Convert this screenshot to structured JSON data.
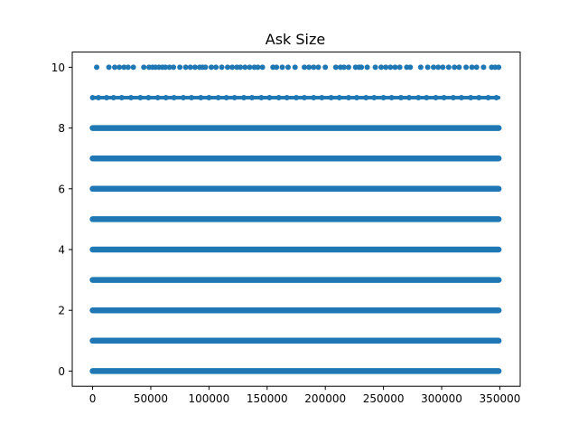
{
  "chart_data": {
    "type": "scatter",
    "title": "Ask Size",
    "xlabel": "",
    "ylabel": "",
    "xlim": [
      -17500,
      367500
    ],
    "ylim": [
      -0.5,
      10.5
    ],
    "x_ticks": [
      0,
      50000,
      100000,
      150000,
      200000,
      250000,
      300000,
      350000
    ],
    "x_tick_labels": [
      "0",
      "50000",
      "100000",
      "150000",
      "200000",
      "250000",
      "300000",
      "350000"
    ],
    "y_ticks": [
      0,
      2,
      4,
      6,
      8,
      10
    ],
    "y_tick_labels": [
      "0",
      "2",
      "4",
      "6",
      "8",
      "10"
    ],
    "grid": false,
    "marker_color": "#1f77b4",
    "series": [
      {
        "dense_levels": [
          0,
          1,
          2,
          3,
          4,
          5,
          6,
          7,
          8
        ],
        "dense_x_range": [
          0,
          349000
        ],
        "x_at_9": [
          0,
          5000,
          12000,
          18000,
          25000,
          33000,
          41000,
          48000,
          56000,
          63000,
          70000,
          78000,
          85000,
          93000,
          100000,
          108000,
          115000,
          122000,
          130000,
          137000,
          145000,
          152000,
          160000,
          167000,
          175000,
          182000,
          190000,
          197000,
          205000,
          212000,
          220000,
          227000,
          235000,
          242000,
          250000,
          257000,
          265000,
          272000,
          280000,
          287000,
          295000,
          302000,
          310000,
          317000,
          325000,
          332000,
          340000,
          347000
        ],
        "x_at_10": [
          3500,
          14000,
          19000,
          23000,
          27000,
          30500,
          35000,
          44000,
          48500,
          51500,
          54000,
          57000,
          60000,
          62500,
          66000,
          69500,
          75000,
          80000,
          84000,
          88000,
          92000,
          94500,
          97000,
          102000,
          106000,
          111000,
          116000,
          120000,
          124000,
          127000,
          131000,
          135000,
          139000,
          142000,
          146000,
          155000,
          158000,
          163000,
          168000,
          174000,
          182000,
          186000,
          190000,
          194000,
          200000,
          209000,
          213000,
          216000,
          220000,
          226000,
          229000,
          231000,
          236000,
          243000,
          248000,
          252000,
          256000,
          260000,
          264000,
          270000,
          273000,
          282000,
          288000,
          293000,
          297000,
          301000,
          306000,
          311000,
          315000,
          321000,
          326000,
          330000,
          336000,
          343000,
          346000,
          349000
        ]
      }
    ]
  }
}
